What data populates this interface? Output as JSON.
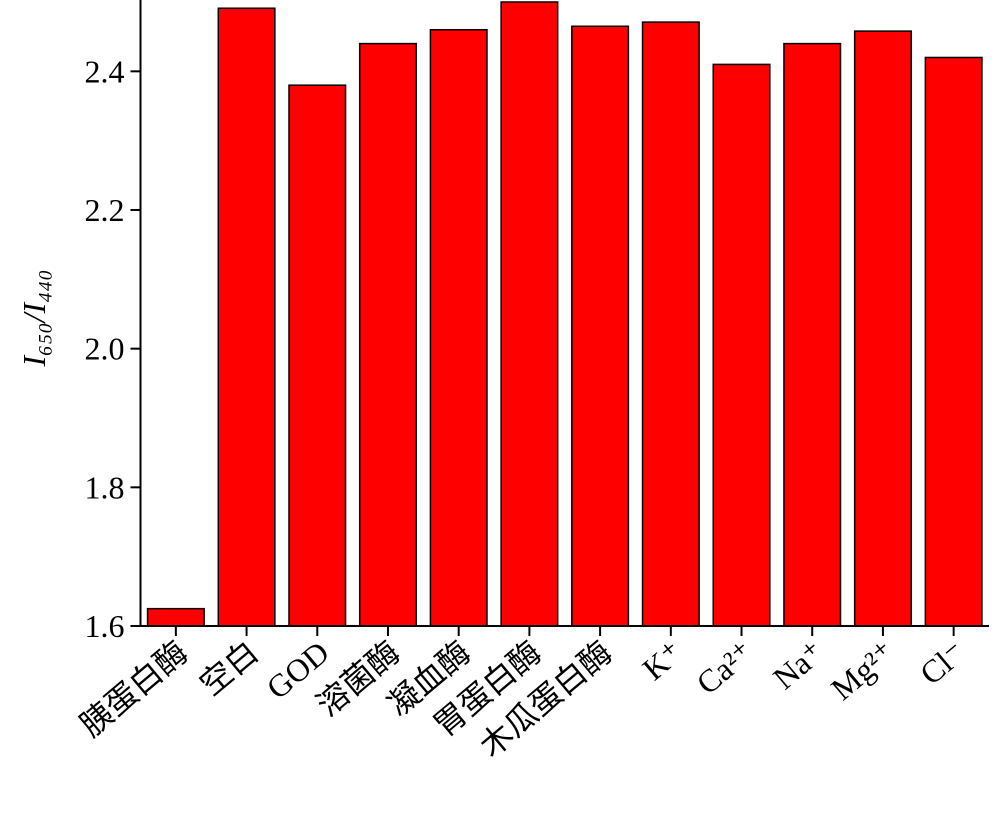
{
  "chart_data": {
    "type": "bar",
    "y_label": "I₆₅₀/I₄₄₀",
    "categories": [
      "胰蛋白酶",
      "空白",
      "GOD",
      "溶菌酶",
      "凝血酶",
      "胃蛋白酶",
      "木瓜蛋白酶",
      "K⁺",
      "Ca²⁺",
      "Na⁺",
      "Mg²⁺",
      "Cl⁻"
    ],
    "values": [
      1.625,
      2.491,
      2.38,
      2.44,
      2.46,
      2.5,
      2.465,
      2.471,
      2.41,
      2.44,
      2.458,
      2.42
    ],
    "color": "#ff0000",
    "ylim": [
      1.6,
      2.5
    ],
    "yticks": [
      1.6,
      1.8,
      2.0,
      2.2,
      2.4
    ]
  }
}
